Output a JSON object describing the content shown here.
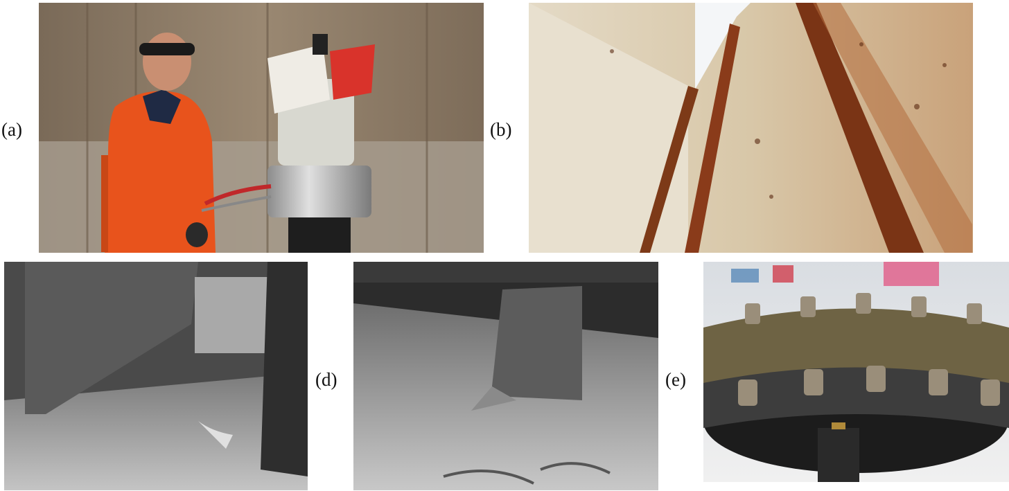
{
  "figure": {
    "panels": [
      {
        "id": "a",
        "label": "(a)",
        "subject": "worker-with-headset-and-scanner-robot"
      },
      {
        "id": "b",
        "label": "(b)",
        "subject": "rusty-tank-wall-with-stiffeners"
      },
      {
        "id": "c",
        "label": "",
        "subject": "grayscale-tank-interior-frames"
      },
      {
        "id": "d",
        "label": "(d)",
        "subject": "grayscale-tank-floor-with-bent-frame"
      },
      {
        "id": "e",
        "label": "(e)",
        "subject": "magnetic-wheel-with-studs"
      }
    ],
    "colors": {
      "orange_suit": "#e8531c",
      "rust": "#8a3b1a",
      "tank_wall_a": "#8d7a64",
      "tank_wall_b": "#dfd3bb",
      "gray_dark": "#3a3a3a",
      "gray_light": "#bdbdbd"
    }
  }
}
